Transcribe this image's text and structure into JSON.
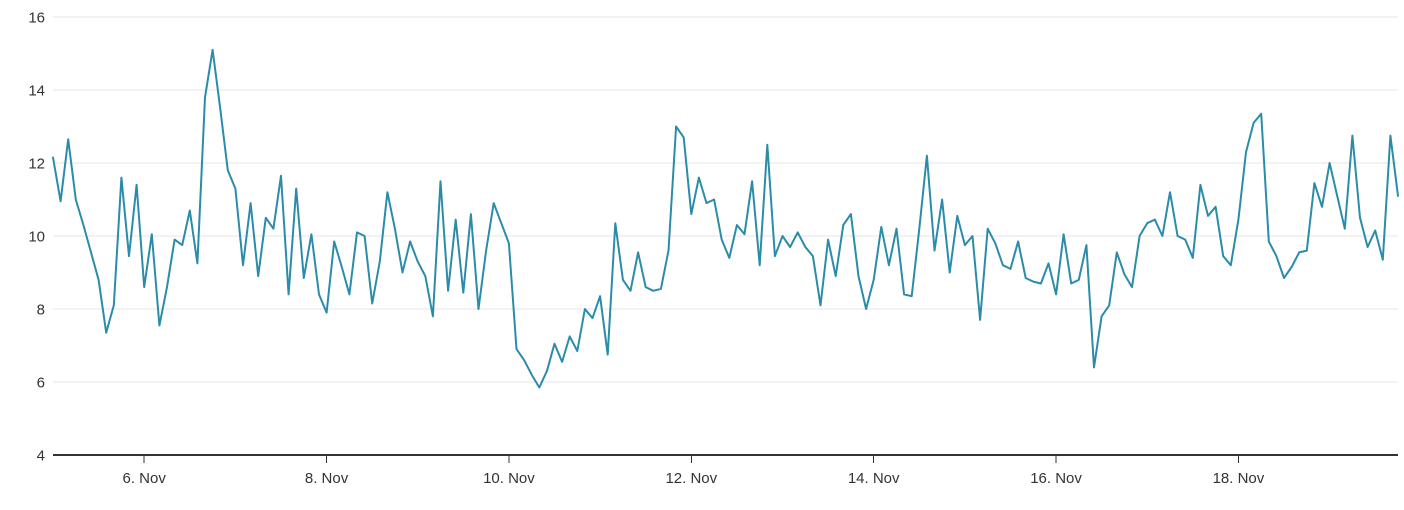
{
  "chart_data": {
    "type": "line",
    "title": "",
    "xlabel": "",
    "ylabel": "",
    "legend": "none",
    "grid": "horizontal-only",
    "ylim": [
      4,
      16
    ],
    "y_ticks": [
      16,
      14,
      12,
      10,
      8,
      6,
      4
    ],
    "x_start": "5. Nov 00:00",
    "x_interval_hours": 2,
    "x_tick_labels": [
      "6. Nov",
      "8. Nov",
      "10. Nov",
      "12. Nov",
      "14. Nov",
      "16. Nov",
      "18. Nov"
    ],
    "x_ticks": [
      {
        "label": "6. Nov",
        "day_offset": 1
      },
      {
        "label": "8. Nov",
        "day_offset": 3
      },
      {
        "label": "10. Nov",
        "day_offset": 5
      },
      {
        "label": "12. Nov",
        "day_offset": 7
      },
      {
        "label": "14. Nov",
        "day_offset": 9
      },
      {
        "label": "16. Nov",
        "day_offset": 11
      },
      {
        "label": "18. Nov",
        "day_offset": 13
      }
    ],
    "series": [
      {
        "name": "series-1",
        "color": "#2b8caa",
        "values": [
          12.15,
          10.95,
          12.65,
          11.0,
          10.3,
          9.55,
          8.8,
          7.35,
          8.1,
          11.6,
          9.45,
          11.4,
          8.6,
          10.05,
          7.55,
          8.6,
          9.9,
          9.75,
          10.7,
          9.25,
          13.8,
          15.1,
          13.5,
          11.8,
          11.3,
          9.2,
          10.9,
          8.9,
          10.5,
          10.2,
          11.65,
          8.4,
          11.3,
          8.85,
          10.05,
          8.4,
          7.9,
          9.85,
          9.15,
          8.4,
          10.1,
          10.0,
          8.15,
          9.3,
          11.2,
          10.2,
          9.0,
          9.85,
          9.3,
          8.9,
          7.8,
          11.5,
          8.5,
          10.45,
          8.45,
          10.6,
          8.0,
          9.6,
          10.9,
          10.35,
          9.8,
          6.9,
          6.6,
          6.2,
          5.85,
          6.3,
          7.05,
          6.55,
          7.25,
          6.85,
          8.0,
          7.75,
          8.35,
          6.75,
          10.35,
          8.8,
          8.5,
          9.55,
          8.6,
          8.5,
          8.55,
          9.6,
          13.0,
          12.7,
          10.6,
          11.6,
          10.9,
          11.0,
          9.9,
          9.4,
          10.3,
          10.05,
          11.5,
          9.2,
          12.5,
          9.45,
          10.0,
          9.7,
          10.1,
          9.7,
          9.45,
          8.1,
          9.9,
          8.9,
          10.3,
          10.6,
          8.9,
          8.0,
          8.8,
          10.25,
          9.2,
          10.2,
          8.4,
          8.35,
          10.2,
          12.2,
          9.6,
          11.0,
          9.0,
          10.55,
          9.75,
          10.0,
          7.7,
          10.2,
          9.8,
          9.2,
          9.1,
          9.85,
          8.85,
          8.75,
          8.7,
          9.25,
          8.4,
          10.05,
          8.7,
          8.8,
          9.75,
          6.4,
          7.8,
          8.1,
          9.55,
          8.95,
          8.6,
          10.0,
          10.35,
          10.45,
          10.0,
          11.2,
          10.0,
          9.9,
          9.4,
          11.4,
          10.55,
          10.8,
          9.45,
          9.2,
          10.45,
          12.3,
          13.1,
          13.35,
          9.85,
          9.45,
          8.85,
          9.15,
          9.55,
          9.6,
          11.45,
          10.8,
          12.0,
          11.1,
          10.2,
          12.75,
          10.5,
          9.7,
          10.15,
          9.35,
          12.75,
          11.1
        ]
      }
    ]
  },
  "colors": {
    "background": "#ffffff",
    "grid_line": "#e6e6e6",
    "axis_line": "#333333",
    "tick_mark": "#333333",
    "label_text": "#333333",
    "series_line": "#2b8caa"
  }
}
